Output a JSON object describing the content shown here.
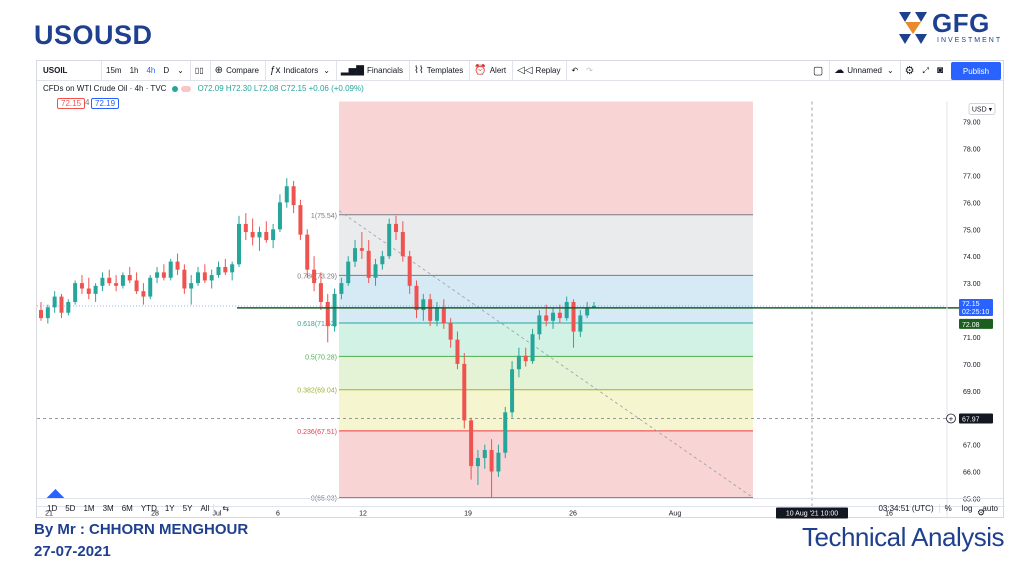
{
  "slide": {
    "title": "USOUSD",
    "author": "By Mr : CHHORN MENGHOUR",
    "date": "27-07-2021",
    "footer_right": "Technical Analysis",
    "brand_color": "#1f3f8f"
  },
  "logo": {
    "text": "GFG",
    "subtext": "INVESTMENT"
  },
  "toolbar": {
    "symbol": "USOIL",
    "intervals": [
      "15m",
      "1h",
      "4h",
      "D"
    ],
    "active_interval": "4h",
    "compare": "Compare",
    "indicators": "Indicators",
    "financials": "Financials",
    "templates": "Templates",
    "alert": "Alert",
    "replay": "Replay",
    "layout_name": "Unnamed",
    "publish": "Publish"
  },
  "legend": {
    "name": "CFDs on WTI Crude Oil · 4h · TVC",
    "ohlc": "O72.09 H72.30 L72.08 C72.15 +0.06 (+0.09%)",
    "sell": "72.15",
    "spread": "4",
    "buy": "72.19"
  },
  "price_axis": {
    "currency": "USD",
    "ticks": [
      "79.00",
      "78.00",
      "77.00",
      "76.00",
      "75.00",
      "74.00",
      "73.00",
      "72.00",
      "71.00",
      "70.00",
      "69.00",
      "68.00",
      "67.00",
      "66.00",
      "65.00"
    ],
    "last_price": "72.15",
    "countdown": "02:25:10",
    "line_label": "72.08",
    "crosshair_label": "67.97"
  },
  "time_axis": {
    "ticks": [
      "21",
      "28",
      "Jul",
      "6",
      "12",
      "19",
      "26",
      "Aug",
      "10 Aug '21  10:00",
      "16"
    ]
  },
  "bottom": {
    "ranges": [
      "1D",
      "5D",
      "1M",
      "3M",
      "6M",
      "YTD",
      "1Y",
      "5Y",
      "All"
    ],
    "clock": "03:34:51 (UTC)",
    "percent": "%",
    "log": "log",
    "auto": "auto"
  },
  "chart_data": {
    "type": "candlestick",
    "ylim": [
      64.7,
      79.6
    ],
    "fib_levels": [
      {
        "label": "1(75.54)",
        "ratio": 1,
        "price": 75.54,
        "color": "#787b86"
      },
      {
        "label": "0.786(73.29)",
        "ratio": 0.786,
        "price": 73.29,
        "color": "#787b86"
      },
      {
        "label": "0.618(71.52)",
        "ratio": 0.618,
        "price": 71.52,
        "color": "#26a69a"
      },
      {
        "label": "0.5(70.28)",
        "ratio": 0.5,
        "price": 70.28,
        "color": "#4caf50"
      },
      {
        "label": "0.382(69.04)",
        "ratio": 0.382,
        "price": 69.04,
        "color": "#9bb52b"
      },
      {
        "label": "0.236(67.51)",
        "ratio": 0.236,
        "price": 67.51,
        "color": "#f23645"
      },
      {
        "label": "0(65.03)",
        "ratio": 0,
        "price": 65.03,
        "color": "#787b86"
      }
    ],
    "horizontal_line": 72.08,
    "last_price": 72.15,
    "candles": [
      [
        72.0,
        72.3,
        71.6,
        71.7
      ],
      [
        71.7,
        72.2,
        71.5,
        72.1
      ],
      [
        72.1,
        72.7,
        71.9,
        72.5
      ],
      [
        72.5,
        72.6,
        71.7,
        71.9
      ],
      [
        71.9,
        72.4,
        71.8,
        72.3
      ],
      [
        72.3,
        73.1,
        72.2,
        73.0
      ],
      [
        73.0,
        73.3,
        72.6,
        72.8
      ],
      [
        72.8,
        73.2,
        72.4,
        72.6
      ],
      [
        72.6,
        73.0,
        72.3,
        72.9
      ],
      [
        72.9,
        73.4,
        72.7,
        73.2
      ],
      [
        73.2,
        73.5,
        72.9,
        73.0
      ],
      [
        73.0,
        73.3,
        72.7,
        72.9
      ],
      [
        72.9,
        73.4,
        72.8,
        73.3
      ],
      [
        73.3,
        73.6,
        73.0,
        73.1
      ],
      [
        73.1,
        73.4,
        72.6,
        72.7
      ],
      [
        72.7,
        73.0,
        72.2,
        72.5
      ],
      [
        72.5,
        73.3,
        72.4,
        73.2
      ],
      [
        73.2,
        73.6,
        73.0,
        73.4
      ],
      [
        73.4,
        73.7,
        73.1,
        73.2
      ],
      [
        73.2,
        73.9,
        73.1,
        73.8
      ],
      [
        73.8,
        74.1,
        73.3,
        73.5
      ],
      [
        73.5,
        73.7,
        72.6,
        72.8
      ],
      [
        72.8,
        73.3,
        72.2,
        73.0
      ],
      [
        73.0,
        73.6,
        72.9,
        73.4
      ],
      [
        73.4,
        73.7,
        73.0,
        73.1
      ],
      [
        73.1,
        73.5,
        72.8,
        73.3
      ],
      [
        73.3,
        73.8,
        73.2,
        73.6
      ],
      [
        73.6,
        73.9,
        73.3,
        73.4
      ],
      [
        73.4,
        73.8,
        73.1,
        73.7
      ],
      [
        73.7,
        75.5,
        73.6,
        75.2
      ],
      [
        75.2,
        75.6,
        74.6,
        74.9
      ],
      [
        74.9,
        75.4,
        74.4,
        74.7
      ],
      [
        74.7,
        75.1,
        74.2,
        74.9
      ],
      [
        74.9,
        75.3,
        74.5,
        74.6
      ],
      [
        74.6,
        75.2,
        74.3,
        75.0
      ],
      [
        75.0,
        76.3,
        74.9,
        76.0
      ],
      [
        76.0,
        76.9,
        75.8,
        76.6
      ],
      [
        76.6,
        76.8,
        75.6,
        75.9
      ],
      [
        75.9,
        76.1,
        74.6,
        74.8
      ],
      [
        74.8,
        75.0,
        73.2,
        73.5
      ],
      [
        73.5,
        74.0,
        72.7,
        73.0
      ],
      [
        73.0,
        73.4,
        72.0,
        72.3
      ],
      [
        72.3,
        72.6,
        70.8,
        71.4
      ],
      [
        71.4,
        72.8,
        71.2,
        72.6
      ],
      [
        72.6,
        73.2,
        72.4,
        73.0
      ],
      [
        73.0,
        74.0,
        72.9,
        73.8
      ],
      [
        73.8,
        74.6,
        73.6,
        74.3
      ],
      [
        74.3,
        74.9,
        73.9,
        74.2
      ],
      [
        74.2,
        74.6,
        73.0,
        73.2
      ],
      [
        73.2,
        73.9,
        72.9,
        73.7
      ],
      [
        73.7,
        74.2,
        73.5,
        74.0
      ],
      [
        74.0,
        75.4,
        73.9,
        75.2
      ],
      [
        75.2,
        75.5,
        74.6,
        74.9
      ],
      [
        74.9,
        75.3,
        73.8,
        74.0
      ],
      [
        74.0,
        74.2,
        72.6,
        72.9
      ],
      [
        72.9,
        73.1,
        71.7,
        72.0
      ],
      [
        72.0,
        72.6,
        71.6,
        72.4
      ],
      [
        72.4,
        72.6,
        71.4,
        71.6
      ],
      [
        71.6,
        72.3,
        71.4,
        72.1
      ],
      [
        72.1,
        72.4,
        71.3,
        71.5
      ],
      [
        71.5,
        71.7,
        70.6,
        70.9
      ],
      [
        70.9,
        71.2,
        69.8,
        70.0
      ],
      [
        70.0,
        70.4,
        67.6,
        67.9
      ],
      [
        67.9,
        68.0,
        65.7,
        66.2
      ],
      [
        66.2,
        66.8,
        65.5,
        66.5
      ],
      [
        66.5,
        67.0,
        66.1,
        66.8
      ],
      [
        66.8,
        67.2,
        65.0,
        66.0
      ],
      [
        66.0,
        67.0,
        65.8,
        66.7
      ],
      [
        66.7,
        68.4,
        66.5,
        68.2
      ],
      [
        68.2,
        70.1,
        68.0,
        69.8
      ],
      [
        69.8,
        70.6,
        69.5,
        70.3
      ],
      [
        70.3,
        70.6,
        69.9,
        70.1
      ],
      [
        70.1,
        71.3,
        70.0,
        71.1
      ],
      [
        71.1,
        72.0,
        70.9,
        71.8
      ],
      [
        71.8,
        72.2,
        71.4,
        71.6
      ],
      [
        71.6,
        72.1,
        71.3,
        71.9
      ],
      [
        71.9,
        72.2,
        71.5,
        71.7
      ],
      [
        71.7,
        72.5,
        71.6,
        72.3
      ],
      [
        72.3,
        72.4,
        70.6,
        71.2
      ],
      [
        71.2,
        72.0,
        71.0,
        71.8
      ],
      [
        71.8,
        72.3,
        71.7,
        72.1
      ],
      [
        72.09,
        72.3,
        72.08,
        72.15
      ]
    ]
  }
}
